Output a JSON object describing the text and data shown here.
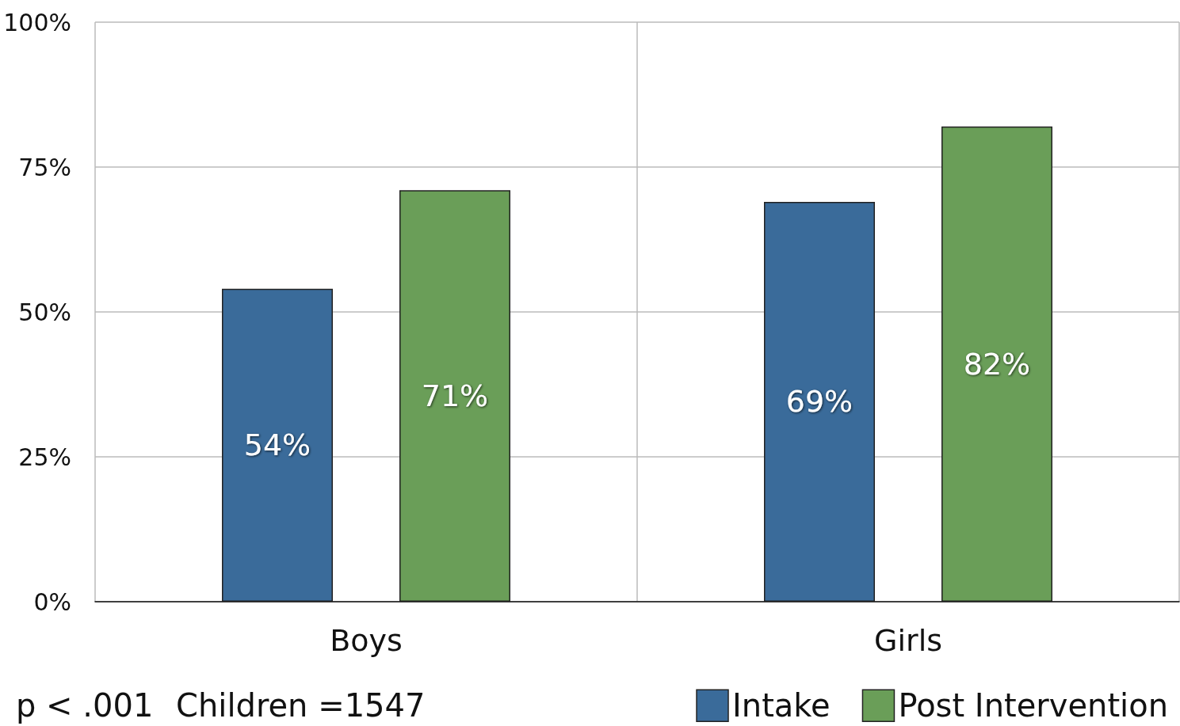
{
  "chart_data": {
    "type": "bar",
    "categories": [
      "Boys",
      "Girls"
    ],
    "series": [
      {
        "name": "Intake",
        "color": "#3a6b9a",
        "values": [
          54,
          69
        ],
        "value_labels": [
          "54%",
          "69%"
        ]
      },
      {
        "name": "Post Intervention",
        "color": "#6a9e58",
        "values": [
          71,
          82
        ],
        "value_labels": [
          "71%",
          "82%"
        ]
      }
    ],
    "ylim": [
      0,
      100
    ],
    "yticks": [
      {
        "value": 0,
        "label": "0%"
      },
      {
        "value": 25,
        "label": "25%"
      },
      {
        "value": 50,
        "label": "50%"
      },
      {
        "value": 75,
        "label": "75%"
      },
      {
        "value": 100,
        "label": "100%"
      }
    ],
    "grid": true,
    "legend": "bottom right",
    "annotations": [
      "p < .001",
      "Children =1547"
    ]
  }
}
